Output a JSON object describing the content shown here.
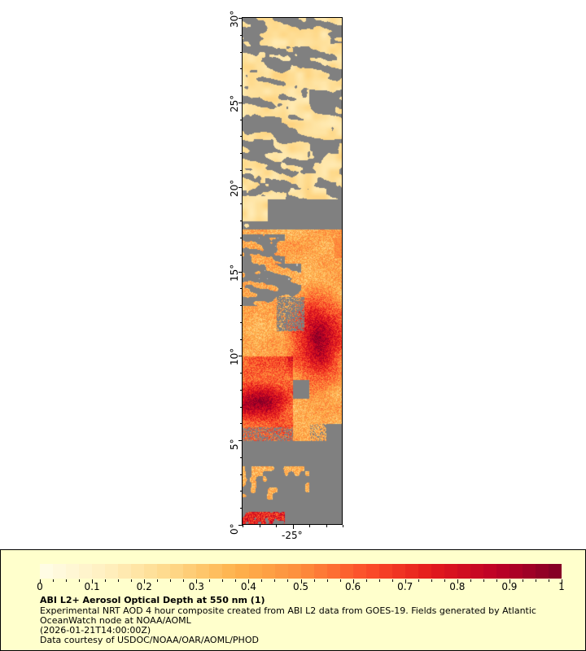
{
  "map": {
    "lat_range": [
      0,
      30
    ],
    "lon_range": [
      -28,
      -22
    ],
    "lat_ticks": [
      "0°",
      "5°",
      "10°",
      "15°",
      "20°",
      "25°",
      "30°"
    ],
    "lon_ticks": [
      "-25°"
    ],
    "missing_color": "#808080",
    "land_color": "#c0c0c0"
  },
  "legend": {
    "colorbar_ticks": [
      "0",
      "0.1",
      "0.2",
      "0.3",
      "0.4",
      "0.5",
      "0.6",
      "0.7",
      "0.8",
      "0.9",
      "1"
    ],
    "colorbar_range": [
      0,
      1
    ],
    "colormap": [
      "#fffde8",
      "#fff0c0",
      "#fed98a",
      "#feb24c",
      "#fd8d3c",
      "#fc4e2a",
      "#e31a1c",
      "#bd0026",
      "#800026"
    ],
    "title": "ABI L2+ Aerosol Optical Depth at 550 nm (1)",
    "line1": "Experimental NRT AOD 4 hour composite created from ABI L2 data from GOES-19. Fields generated by Atlantic",
    "line2": "OceanWatch node at NOAA/AOML",
    "line3": "(2026-01-21T14:00:00Z)",
    "line4": "Data courtesy of USDOC/NOAA/OAR/AOML/PHOD",
    "background": "#ffffcc"
  }
}
